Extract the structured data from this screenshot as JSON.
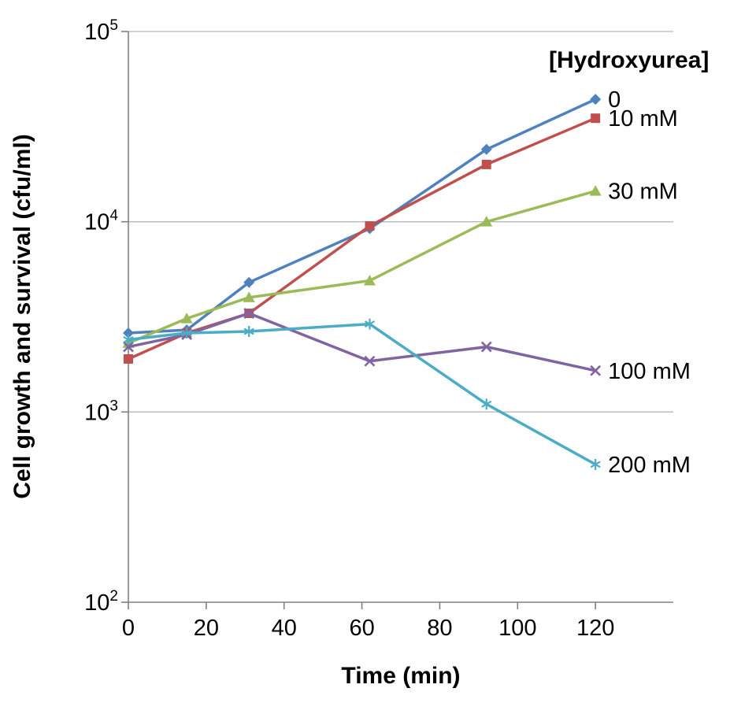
{
  "chart_data": {
    "type": "line",
    "title": "",
    "xlabel": "Time (min)",
    "ylabel": "Cell growth and survival (cfu/ml)",
    "legend_title": "[Hydroxyurea]",
    "legend_position": "right-inline",
    "grid": "horizontal",
    "y_scale": "log",
    "ylim": [
      100,
      100000
    ],
    "y_ticks": [
      100,
      1000,
      10000,
      100000
    ],
    "xlim": [
      0,
      140
    ],
    "x_ticks": [
      0,
      20,
      40,
      60,
      80,
      100,
      120
    ],
    "x": [
      0,
      15,
      31,
      62,
      92,
      120
    ],
    "series": [
      {
        "name": "0",
        "color": "#4f81bd",
        "marker": "diamond",
        "values": [
          2600,
          2700,
          4800,
          9200,
          24000,
          44000
        ]
      },
      {
        "name": "10 mM",
        "color": "#c0504d",
        "marker": "square",
        "values": [
          1900,
          2600,
          3300,
          9500,
          20000,
          35000
        ]
      },
      {
        "name": "30 mM",
        "color": "#9bbb59",
        "marker": "triangle",
        "values": [
          2300,
          3100,
          4000,
          4900,
          10000,
          14500
        ]
      },
      {
        "name": "100 mM",
        "color": "#8064a2",
        "marker": "x",
        "values": [
          2200,
          2550,
          3300,
          1850,
          2200,
          1650
        ]
      },
      {
        "name": "200 mM",
        "color": "#4bacc6",
        "marker": "asterisk",
        "values": [
          2400,
          2600,
          2650,
          2900,
          1100,
          530
        ]
      }
    ],
    "colors": {
      "grid": "#b8b8b8",
      "axis": "#808080",
      "text": "#000000"
    }
  }
}
